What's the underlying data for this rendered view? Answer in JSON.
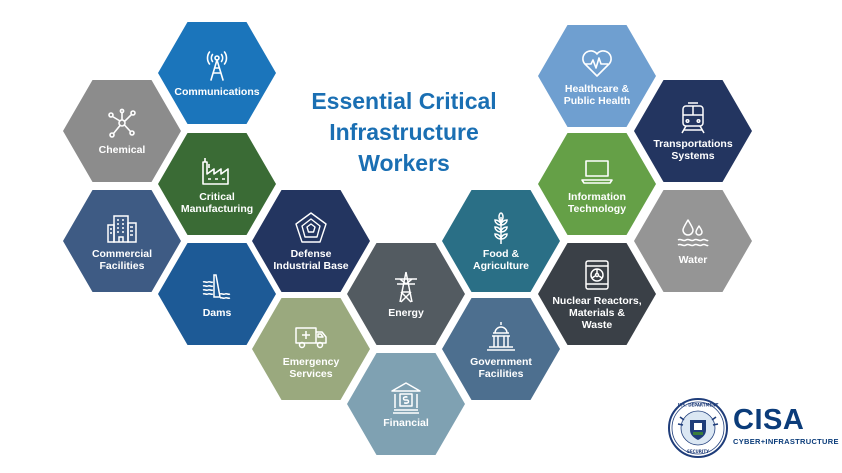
{
  "title": {
    "line1": "Essential Critical",
    "line2": "Infrastructure",
    "line3": "Workers"
  },
  "colors": {
    "title": "#1a6fb3",
    "communications": "#1b75bb",
    "chemical": "#8c8c8c",
    "critical_manufacturing": "#3a6b35",
    "commercial_facilities": "#3e5b84",
    "dams": "#1d5a96",
    "defense": "#233560",
    "energy": "#535b61",
    "emergency": "#9aa97e",
    "financial": "#7fa1b2",
    "food": "#2a6f86",
    "government": "#4d6f8f",
    "healthcare": "#6f9fd0",
    "transportation": "#233560",
    "information": "#65a047",
    "water": "#959595",
    "nuclear": "#3a4047"
  },
  "sectors": {
    "communications": {
      "label": "Communications",
      "icon": "antenna-icon"
    },
    "chemical": {
      "label": "Chemical",
      "icon": "molecule-icon"
    },
    "critical_manufacturing": {
      "label": "Critical\nManufacturing",
      "icon": "factory-icon"
    },
    "commercial_facilities": {
      "label": "Commercial\nFacilities",
      "icon": "office-building-icon"
    },
    "dams": {
      "label": "Dams",
      "icon": "dam-icon"
    },
    "defense": {
      "label": "Defense\nIndustrial Base",
      "icon": "pentagon-icon"
    },
    "energy": {
      "label": "Energy",
      "icon": "power-tower-icon"
    },
    "emergency": {
      "label": "Emergency\nServices",
      "icon": "ambulance-icon"
    },
    "financial": {
      "label": "Financial",
      "icon": "bank-icon"
    },
    "food": {
      "label": "Food &\nAgriculture",
      "icon": "wheat-icon"
    },
    "government": {
      "label": "Government\nFacilities",
      "icon": "capitol-icon"
    },
    "healthcare": {
      "label": "Healthcare &\nPublic Health",
      "icon": "heart-pulse-icon"
    },
    "transportation": {
      "label": "Transportations\nSystems",
      "icon": "train-icon"
    },
    "information": {
      "label": "Information\nTechnology",
      "icon": "laptop-icon"
    },
    "water": {
      "label": "Water",
      "icon": "water-drops-icon"
    },
    "nuclear": {
      "label": "Nuclear Reactors,\nMaterials &\nWaste",
      "icon": "radiation-icon"
    }
  },
  "logo": {
    "name": "CISA",
    "subtitle": "CYBER+INFRASTRUCTURE",
    "seal_text": "U.S. DEPARTMENT OF HOMELAND SECURITY"
  }
}
